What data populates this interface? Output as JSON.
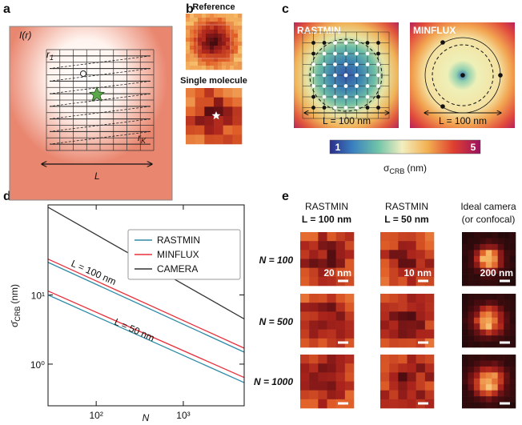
{
  "panel_labels": [
    "a",
    "b",
    "c",
    "d",
    "e"
  ],
  "panel_a": {
    "intensity_label": "I(r)",
    "first_position": {
      "symbol": "r",
      "subscript": "1"
    },
    "last_position": {
      "symbol": "r",
      "subscript": "K"
    },
    "scan_size": "L"
  },
  "panel_b": {
    "reference_title": "Reference",
    "single_molecule_title": "Single molecule"
  },
  "panel_c": {
    "maps": [
      {
        "title": "RASTMIN",
        "scan_size": "L = 100 nm"
      },
      {
        "title": "MINFLUX",
        "scan_size": "L = 100 nm"
      }
    ],
    "colorbar": {
      "ticks": [
        1,
        5
      ],
      "label": {
        "symbol": "σ",
        "subscript": "CRB",
        "unit": "(nm)"
      }
    }
  },
  "chart_data": {
    "type": "line",
    "x_label": "N",
    "y_label": {
      "symbol": "σ̄",
      "subscript": "CRB",
      "unit": "(nm)"
    },
    "xscale": "log",
    "yscale": "log",
    "legend": "upper right",
    "x": [
      28,
      5000
    ],
    "xlim": [
      28,
      5000
    ],
    "ylim": [
      0.25,
      200
    ],
    "xticks": [
      {
        "value": 100,
        "label": "10²"
      },
      {
        "value": 1000,
        "label": "10³"
      }
    ],
    "yticks": [
      {
        "value": 1,
        "label": "10⁰"
      },
      {
        "value": 10,
        "label": "10¹"
      }
    ],
    "series": [
      {
        "name": "RASTMIN",
        "color": "#2e8ba6",
        "values": [
          29.6,
          1.49
        ]
      },
      {
        "name": "MINFLUX",
        "color": "#e8303a",
        "values": [
          33,
          1.7
        ]
      },
      {
        "name": "CAMERA",
        "color": "#333333",
        "values": [
          185,
          4.5
        ]
      },
      {
        "color": "#2e8ba6",
        "values": [
          10,
          0.54
        ]
      },
      {
        "color": "#e8303a",
        "values": [
          11.4,
          0.64
        ]
      }
    ],
    "annotations": [
      {
        "text": "L = 100 nm"
      },
      {
        "text": "L = 50 nm"
      }
    ]
  },
  "panel_e": {
    "columns": [
      {
        "title": "RASTMIN",
        "subtitle": "L = 100 nm",
        "scale_bar": "20 nm"
      },
      {
        "title": "RASTMIN",
        "subtitle": "L = 50 nm",
        "scale_bar": "10 nm"
      },
      {
        "title": "Ideal camera",
        "subtitle": "(or confocal)",
        "scale_bar": "200 nm"
      }
    ],
    "rows": [
      "N = 100",
      "N = 500",
      "N = 1000"
    ]
  }
}
